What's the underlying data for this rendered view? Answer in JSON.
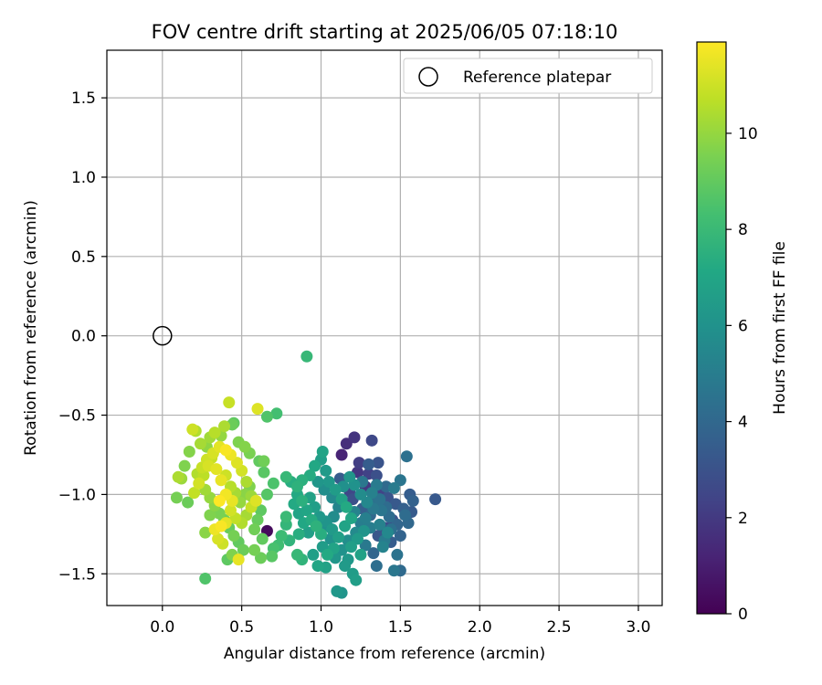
{
  "chart_data": {
    "type": "scatter",
    "title": "FOV centre drift starting at 2025/06/05 07:18:10",
    "xlabel": "Angular distance from reference (arcmin)",
    "ylabel": "Rotation from reference (arcmin)",
    "xlim": [
      -0.35,
      3.15
    ],
    "ylim": [
      -1.7,
      1.8
    ],
    "xticks": [
      0.0,
      0.5,
      1.0,
      1.5,
      2.0,
      2.5,
      3.0
    ],
    "xtick_labels": [
      "0.0",
      "0.5",
      "1.0",
      "1.5",
      "2.0",
      "2.5",
      "3.0"
    ],
    "yticks": [
      1.5,
      1.0,
      0.5,
      0.0,
      -0.5,
      -1.0,
      -1.5
    ],
    "ytick_labels": [
      "1.5",
      "1.0",
      "0.5",
      "0.0",
      "−0.5",
      "−1.0",
      "−1.5"
    ],
    "grid": true,
    "legend": {
      "position": "top-right",
      "entries": [
        "Reference platepar"
      ]
    },
    "reference_point": {
      "x": 0.0,
      "y": 0.0,
      "marker": "open-circle"
    },
    "colorbar": {
      "label": "Hours from first FF file",
      "colormap": "viridis",
      "range": [
        0,
        11.9
      ],
      "ticks": [
        0,
        2,
        4,
        6,
        8,
        10
      ],
      "tick_labels": [
        "0",
        "2",
        "4",
        "6",
        "8",
        "10"
      ]
    },
    "series": [
      {
        "points": [
          [
            1.21,
            -0.64,
            1.8
          ],
          [
            1.16,
            -0.68,
            1.6
          ],
          [
            1.13,
            -0.75,
            1.2
          ],
          [
            1.24,
            -0.8,
            2.2
          ],
          [
            1.32,
            -0.66,
            2.6
          ],
          [
            1.3,
            -0.87,
            2.3
          ],
          [
            1.35,
            -0.88,
            2.9
          ],
          [
            1.28,
            -0.95,
            2.0
          ],
          [
            1.38,
            -0.98,
            2.4
          ],
          [
            1.42,
            -1.02,
            3.1
          ],
          [
            1.47,
            -1.06,
            3.3
          ],
          [
            1.52,
            -1.09,
            3.6
          ],
          [
            1.57,
            -1.11,
            3.4
          ],
          [
            1.45,
            -1.16,
            3.0
          ],
          [
            1.4,
            -1.21,
            2.7
          ],
          [
            1.36,
            -1.26,
            3.2
          ],
          [
            1.44,
            -1.3,
            3.5
          ],
          [
            1.5,
            -1.26,
            3.8
          ],
          [
            1.55,
            -1.18,
            4.0
          ],
          [
            1.58,
            -1.04,
            3.7
          ],
          [
            1.72,
            -1.03,
            3.3
          ],
          [
            1.54,
            -0.76,
            4.4
          ],
          [
            1.5,
            -0.91,
            4.6
          ],
          [
            1.46,
            -0.96,
            4.9
          ],
          [
            1.41,
            -1.08,
            4.2
          ],
          [
            1.48,
            -1.38,
            4.5
          ],
          [
            1.5,
            -1.48,
            4.1
          ],
          [
            1.46,
            -1.48,
            4.7
          ],
          [
            1.35,
            -1.45,
            4.3
          ],
          [
            1.33,
            -1.37,
            3.9
          ],
          [
            1.28,
            -1.32,
            4.8
          ],
          [
            1.25,
            -1.18,
            5.0
          ],
          [
            1.2,
            -1.03,
            2.9
          ],
          [
            1.18,
            -0.98,
            2.5
          ],
          [
            1.23,
            -0.86,
            1.9
          ],
          [
            1.12,
            -0.9,
            3.4
          ],
          [
            1.26,
            -1.09,
            3.6
          ],
          [
            1.31,
            -1.13,
            4.0
          ],
          [
            1.34,
            -1.04,
            4.4
          ],
          [
            1.37,
            -1.19,
            5.2
          ],
          [
            1.42,
            -1.24,
            5.5
          ],
          [
            1.39,
            -1.33,
            5.3
          ],
          [
            1.31,
            -1.21,
            5.0
          ],
          [
            1.22,
            -1.24,
            5.6
          ],
          [
            1.17,
            -1.29,
            5.8
          ],
          [
            1.13,
            -1.35,
            6.0
          ],
          [
            1.09,
            -1.4,
            6.2
          ],
          [
            1.15,
            -1.45,
            6.4
          ],
          [
            1.2,
            -1.5,
            6.5
          ],
          [
            1.22,
            -1.54,
            6.6
          ],
          [
            1.1,
            -1.61,
            6.3
          ],
          [
            1.13,
            -1.62,
            6.1
          ],
          [
            1.03,
            -1.46,
            6.8
          ],
          [
            0.98,
            -1.45,
            7.0
          ],
          [
            0.95,
            -1.38,
            6.7
          ],
          [
            1.01,
            -1.33,
            6.5
          ],
          [
            1.06,
            -1.28,
            6.0
          ],
          [
            1.04,
            -1.2,
            5.9
          ],
          [
            1.08,
            -1.14,
            5.7
          ],
          [
            1.11,
            -1.08,
            5.4
          ],
          [
            1.07,
            -1.02,
            5.6
          ],
          [
            1.02,
            -0.97,
            5.8
          ],
          [
            0.98,
            -0.92,
            6.2
          ],
          [
            1.03,
            -0.85,
            6.4
          ],
          [
            1.0,
            -0.78,
            6.6
          ],
          [
            1.01,
            -0.73,
            6.9
          ],
          [
            0.96,
            -0.82,
            7.1
          ],
          [
            0.93,
            -0.88,
            7.3
          ],
          [
            0.88,
            -0.91,
            7.5
          ],
          [
            0.85,
            -0.95,
            7.6
          ],
          [
            0.81,
            -0.92,
            7.4
          ],
          [
            0.78,
            -0.89,
            7.9
          ],
          [
            0.83,
            -1.06,
            7.2
          ],
          [
            0.86,
            -1.12,
            6.9
          ],
          [
            0.89,
            -1.18,
            7.1
          ],
          [
            0.92,
            -1.24,
            6.7
          ],
          [
            0.86,
            -1.25,
            7.4
          ],
          [
            0.8,
            -1.29,
            7.7
          ],
          [
            0.78,
            -1.19,
            7.8
          ],
          [
            0.78,
            -1.14,
            8.0
          ],
          [
            0.75,
            -1.26,
            8.1
          ],
          [
            0.73,
            -1.32,
            8.2
          ],
          [
            0.7,
            -1.34,
            8.4
          ],
          [
            0.85,
            -1.38,
            7.9
          ],
          [
            0.88,
            -1.41,
            7.7
          ],
          [
            0.91,
            -0.13,
            7.9
          ],
          [
            0.66,
            -0.51,
            8.6
          ],
          [
            0.72,
            -0.49,
            8.3
          ],
          [
            0.64,
            -0.86,
            8.8
          ],
          [
            0.7,
            -0.93,
            8.5
          ],
          [
            0.66,
            -1.0,
            8.7
          ],
          [
            0.62,
            -1.1,
            8.9
          ],
          [
            0.6,
            -1.16,
            9.1
          ],
          [
            0.58,
            -1.22,
            9.3
          ],
          [
            0.63,
            -1.28,
            9.0
          ],
          [
            0.58,
            -1.35,
            9.4
          ],
          [
            0.62,
            -1.4,
            9.2
          ],
          [
            0.69,
            -1.39,
            8.8
          ],
          [
            0.66,
            -1.23,
            0.3
          ],
          [
            0.64,
            -0.79,
            9.3
          ],
          [
            0.61,
            -0.79,
            9.0
          ],
          [
            0.55,
            -0.74,
            9.5
          ],
          [
            0.52,
            -0.7,
            9.7
          ],
          [
            0.48,
            -0.67,
            9.6
          ],
          [
            0.44,
            -0.56,
            9.2
          ],
          [
            0.45,
            -0.55,
            8.9
          ],
          [
            0.42,
            -0.42,
            10.9
          ],
          [
            0.6,
            -0.46,
            11.3
          ],
          [
            0.39,
            -0.57,
            10.4
          ],
          [
            0.37,
            -0.63,
            10.0
          ],
          [
            0.33,
            -0.61,
            10.6
          ],
          [
            0.3,
            -0.64,
            10.2
          ],
          [
            0.28,
            -0.7,
            9.9
          ],
          [
            0.24,
            -0.68,
            10.3
          ],
          [
            0.21,
            -0.6,
            10.5
          ],
          [
            0.19,
            -0.59,
            11.0
          ],
          [
            0.17,
            -0.73,
            9.7
          ],
          [
            0.14,
            -0.82,
            9.6
          ],
          [
            0.12,
            -0.9,
            10.1
          ],
          [
            0.1,
            -0.89,
            10.4
          ],
          [
            0.09,
            -1.02,
            9.4
          ],
          [
            0.16,
            -1.05,
            9.2
          ],
          [
            0.2,
            -0.99,
            10.8
          ],
          [
            0.23,
            -0.93,
            11.1
          ],
          [
            0.26,
            -0.88,
            10.7
          ],
          [
            0.29,
            -0.82,
            11.2
          ],
          [
            0.31,
            -0.77,
            10.9
          ],
          [
            0.34,
            -0.84,
            11.4
          ],
          [
            0.37,
            -0.91,
            11.5
          ],
          [
            0.4,
            -0.88,
            11.0
          ],
          [
            0.43,
            -0.95,
            10.6
          ],
          [
            0.46,
            -0.99,
            10.3
          ],
          [
            0.49,
            -1.05,
            10.0
          ],
          [
            0.52,
            -1.0,
            9.8
          ],
          [
            0.55,
            -0.95,
            9.6
          ],
          [
            0.5,
            -0.85,
            11.1
          ],
          [
            0.47,
            -0.8,
            11.3
          ],
          [
            0.43,
            -0.75,
            11.6
          ],
          [
            0.4,
            -0.72,
            11.8
          ],
          [
            0.36,
            -0.7,
            11.4
          ],
          [
            0.32,
            -0.74,
            11.2
          ],
          [
            0.28,
            -0.78,
            11.0
          ],
          [
            0.25,
            -0.83,
            10.9
          ],
          [
            0.22,
            -0.87,
            10.5
          ],
          [
            0.27,
            -0.97,
            10.2
          ],
          [
            0.3,
            -1.02,
            10.0
          ],
          [
            0.33,
            -1.07,
            9.8
          ],
          [
            0.36,
            -1.12,
            9.5
          ],
          [
            0.39,
            -1.16,
            9.3
          ],
          [
            0.42,
            -1.21,
            9.1
          ],
          [
            0.45,
            -1.26,
            9.4
          ],
          [
            0.48,
            -1.3,
            9.0
          ],
          [
            0.51,
            -1.35,
            9.2
          ],
          [
            0.44,
            -1.38,
            9.6
          ],
          [
            0.41,
            -1.41,
            8.9
          ],
          [
            0.48,
            -1.41,
            11.5
          ],
          [
            0.38,
            -1.31,
            11.0
          ],
          [
            0.35,
            -1.28,
            11.2
          ],
          [
            0.33,
            -1.22,
            11.6
          ],
          [
            0.37,
            -1.2,
            11.8
          ],
          [
            0.4,
            -1.18,
            11.4
          ],
          [
            0.43,
            -1.1,
            11.1
          ],
          [
            0.46,
            -1.15,
            10.8
          ],
          [
            0.5,
            -1.18,
            10.5
          ],
          [
            0.53,
            -1.13,
            10.3
          ],
          [
            0.56,
            -1.08,
            10.9
          ],
          [
            0.59,
            -1.04,
            11.3
          ],
          [
            0.56,
            -1.01,
            10.1
          ],
          [
            0.53,
            -0.92,
            10.4
          ],
          [
            0.36,
            -1.04,
            11.9
          ],
          [
            0.4,
            -1.0,
            11.7
          ],
          [
            0.44,
            -1.04,
            11.5
          ],
          [
            0.3,
            -1.13,
            9.6
          ],
          [
            0.27,
            -1.24,
            9.8
          ],
          [
            0.27,
            -1.53,
            8.6
          ],
          [
            0.85,
            -1.0,
            7.2
          ],
          [
            0.93,
            -1.02,
            6.8
          ],
          [
            0.96,
            -1.08,
            6.6
          ],
          [
            0.99,
            -1.14,
            6.3
          ],
          [
            1.03,
            -1.17,
            6.1
          ],
          [
            1.07,
            -1.22,
            6.4
          ],
          [
            1.11,
            -1.27,
            6.7
          ],
          [
            1.15,
            -1.2,
            6.9
          ],
          [
            1.19,
            -1.15,
            7.0
          ],
          [
            1.16,
            -1.08,
            7.2
          ],
          [
            1.13,
            -1.03,
            6.8
          ],
          [
            1.09,
            -0.97,
            6.5
          ],
          [
            1.05,
            -0.92,
            6.3
          ],
          [
            1.14,
            -0.95,
            5.9
          ],
          [
            1.18,
            -0.89,
            6.2
          ],
          [
            1.21,
            -0.94,
            6.0
          ],
          [
            1.25,
            -1.0,
            5.7
          ],
          [
            1.29,
            -1.05,
            5.5
          ],
          [
            1.32,
            -0.99,
            5.2
          ],
          [
            1.35,
            -0.94,
            4.9
          ],
          [
            1.38,
            -1.1,
            4.6
          ],
          [
            1.43,
            -1.14,
            4.2
          ],
          [
            1.27,
            -1.23,
            6.1
          ],
          [
            1.23,
            -1.28,
            6.4
          ],
          [
            1.19,
            -1.33,
            6.6
          ],
          [
            1.25,
            -1.38,
            6.8
          ],
          [
            1.17,
            -1.41,
            6.3
          ],
          [
            1.08,
            -1.34,
            6.9
          ],
          [
            1.04,
            -1.38,
            7.2
          ],
          [
            1.0,
            -1.25,
            7.4
          ],
          [
            0.97,
            -1.2,
            7.6
          ],
          [
            0.94,
            -1.16,
            7.3
          ],
          [
            0.91,
            -1.1,
            7.0
          ],
          [
            0.88,
            -1.04,
            7.5
          ],
          [
            1.21,
            -1.11,
            5.3
          ],
          [
            1.28,
            -1.15,
            5.1
          ],
          [
            1.33,
            -1.09,
            4.8
          ],
          [
            1.37,
            -1.03,
            4.5
          ],
          [
            1.41,
            -0.95,
            4.1
          ],
          [
            1.26,
            -0.92,
            4.7
          ],
          [
            1.3,
            -0.81,
            3.5
          ],
          [
            1.36,
            -0.8,
            3.1
          ],
          [
            1.4,
            -1.29,
            4.9
          ],
          [
            1.44,
            -1.22,
            4.4
          ],
          [
            1.48,
            -1.19,
            3.9
          ],
          [
            1.53,
            -1.13,
            4.2
          ],
          [
            1.56,
            -1.0,
            3.5
          ]
        ]
      }
    ]
  }
}
